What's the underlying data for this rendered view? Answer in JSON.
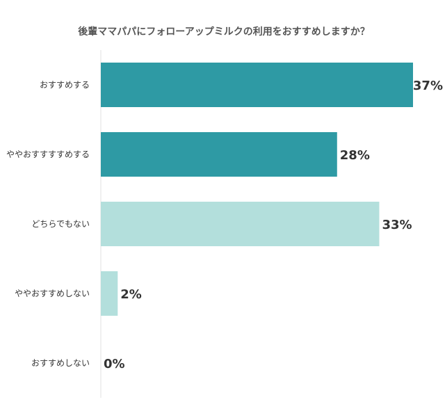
{
  "chart_data": {
    "type": "bar",
    "orientation": "horizontal",
    "title": "後輩ママパパにフォローアップミルクの利用をおすすめしますか？",
    "categories": [
      "おすすめする",
      "ややおすすすすめする",
      "どちらでもない",
      "ややおすすめしない",
      "おすすめしない"
    ],
    "values": [
      37,
      28,
      33,
      2,
      0
    ],
    "value_labels": [
      "37%",
      "28%",
      "33%",
      "2%",
      "0%"
    ],
    "colors": [
      "#2e9aa4",
      "#2e9aa4",
      "#b3dfdc",
      "#b3dfdc",
      "#b3dfdc"
    ],
    "xlim": [
      0,
      37
    ],
    "grid": false,
    "legend": "none"
  }
}
